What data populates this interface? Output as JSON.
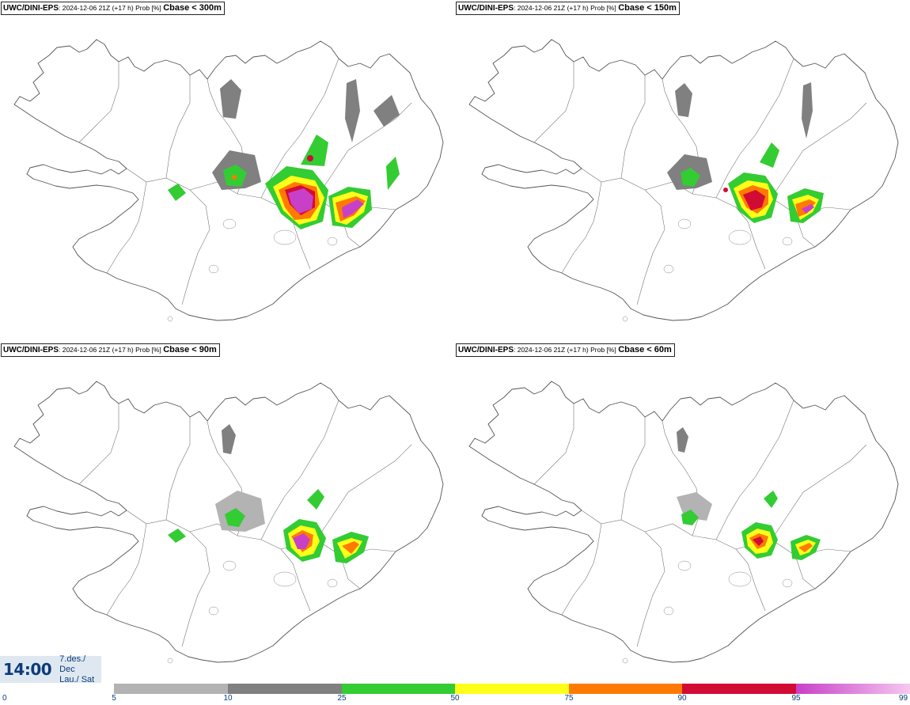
{
  "panels": [
    {
      "source": "UWC/DINI-EPS",
      "run": ": 2024-12-06 21Z (+17 h) Prob [%]",
      "field": "Cbase < 300m"
    },
    {
      "source": "UWC/DINI-EPS",
      "run": ": 2024-12-06 21Z (+17 h) Prob [%]",
      "field": "Cbase < 150m"
    },
    {
      "source": "UWC/DINI-EPS",
      "run": ": 2024-12-06 21Z (+17 h) Prob [%]",
      "field": "Cbase < 90m"
    },
    {
      "source": "UWC/DINI-EPS",
      "run": ": 2024-12-06 21Z (+17 h) Prob [%]",
      "field": "Cbase < 60m"
    }
  ],
  "valid_time": {
    "time": "14:00",
    "date_line": "7.des./ Dec",
    "day_line": "Lau./ Sat"
  },
  "legend": {
    "ticks": [
      "0",
      "5",
      "10",
      "25",
      "50",
      "75",
      "90",
      "95",
      "99"
    ],
    "bins": [
      {
        "from": 5,
        "to": 10,
        "color": "#b3b3b3"
      },
      {
        "from": 10,
        "to": 25,
        "color": "#808080"
      },
      {
        "from": 25,
        "to": 50,
        "color": "#33cc33"
      },
      {
        "from": 50,
        "to": 75,
        "color": "#ffff1a"
      },
      {
        "from": 75,
        "to": 90,
        "color": "#ff7a00"
      },
      {
        "from": 90,
        "to": 95,
        "color": "#d20b35"
      },
      {
        "from": 95,
        "to": 99,
        "color": "#c840c8",
        "color_end": "#f5c8f0"
      }
    ]
  }
}
